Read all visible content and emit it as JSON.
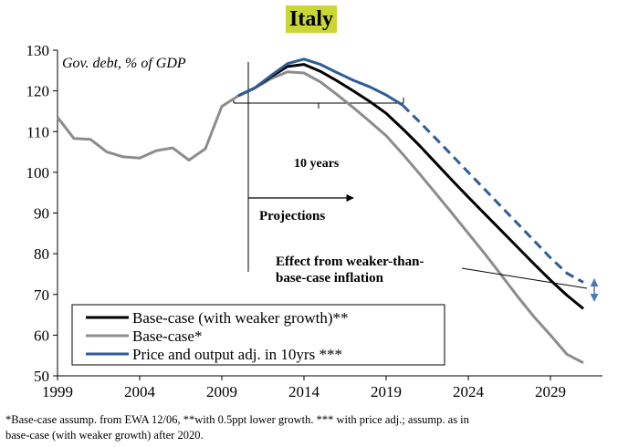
{
  "page": {
    "title": "Italy",
    "footnote_line1": "*Base-case assump. from EWA 12/06, **with 0.5ppt lower growth. *** with price adj.; assump. as in",
    "footnote_line2": "base-case (with weaker growth) after 2020."
  },
  "colors": {
    "black": "#000000",
    "gray": "#8c8c8c",
    "blue": "#2e5c96",
    "title_bg": "#c9d634"
  },
  "chart_data": {
    "type": "line",
    "title": "Italy",
    "ylabel": "Gov. debt, % of GDP",
    "xlim": [
      1999,
      2032
    ],
    "ylim": [
      50,
      130
    ],
    "xticks": [
      1999,
      2004,
      2009,
      2014,
      2019,
      2024,
      2029
    ],
    "yticks": [
      50,
      60,
      70,
      80,
      90,
      100,
      110,
      120,
      130
    ],
    "series": [
      {
        "name": "Base-case*",
        "color": "gray",
        "points": [
          [
            1999,
            113.5
          ],
          [
            2000,
            108.3
          ],
          [
            2001,
            108.1
          ],
          [
            2002,
            105
          ],
          [
            2003,
            103.8
          ],
          [
            2004,
            103.5
          ],
          [
            2005,
            105.3
          ],
          [
            2006,
            106
          ],
          [
            2007,
            103
          ],
          [
            2008,
            105.8
          ],
          [
            2009,
            116.2
          ],
          [
            2010,
            118.8
          ],
          [
            2011,
            120.7
          ],
          [
            2012,
            123
          ],
          [
            2013,
            124.7
          ],
          [
            2014,
            124.4
          ],
          [
            2015,
            122.2
          ],
          [
            2016,
            119.1
          ],
          [
            2017,
            115.9
          ],
          [
            2018,
            112.5
          ],
          [
            2019,
            109
          ],
          [
            2020,
            104.5
          ],
          [
            2021,
            99.8
          ],
          [
            2022,
            94.9
          ],
          [
            2023,
            90
          ],
          [
            2024,
            85
          ],
          [
            2025,
            80
          ],
          [
            2026,
            74.8
          ],
          [
            2027,
            69.5
          ],
          [
            2028,
            64.5
          ],
          [
            2029,
            60
          ],
          [
            2030,
            55.3
          ],
          [
            2031,
            53.2
          ]
        ]
      },
      {
        "name": "Base-case (with weaker growth)**",
        "color": "black",
        "points": [
          [
            2010,
            118.8
          ],
          [
            2011,
            120.7
          ],
          [
            2012,
            123.5
          ],
          [
            2013,
            126
          ],
          [
            2014,
            126.5
          ],
          [
            2015,
            124.8
          ],
          [
            2016,
            122.5
          ],
          [
            2017,
            120
          ],
          [
            2018,
            117.4
          ],
          [
            2019,
            114.5
          ],
          [
            2020,
            110.7
          ],
          [
            2021,
            106.7
          ],
          [
            2022,
            102.4
          ],
          [
            2023,
            98.1
          ],
          [
            2024,
            93.9
          ],
          [
            2025,
            89.8
          ],
          [
            2026,
            85.7
          ],
          [
            2027,
            81.6
          ],
          [
            2028,
            77.5
          ],
          [
            2029,
            73.5
          ],
          [
            2030,
            69.8
          ],
          [
            2031,
            66.5
          ]
        ]
      },
      {
        "name": "Price and output adj. in 10yrs ***",
        "color": "blue",
        "points": [
          [
            2010,
            118.8
          ],
          [
            2011,
            120.7
          ],
          [
            2012,
            123.8
          ],
          [
            2013,
            126.7
          ],
          [
            2014,
            127.8
          ],
          [
            2015,
            126.5
          ],
          [
            2016,
            124.5
          ],
          [
            2017,
            122.6
          ],
          [
            2018,
            121
          ],
          [
            2019,
            119
          ],
          [
            2020,
            116.5
          ]
        ],
        "projection_dashed": [
          [
            2020,
            116.5
          ],
          [
            2021,
            112.5
          ],
          [
            2022,
            108.4
          ],
          [
            2023,
            104.2
          ],
          [
            2024,
            100
          ],
          [
            2025,
            95.8
          ],
          [
            2026,
            91.6
          ],
          [
            2027,
            87.4
          ],
          [
            2028,
            83.2
          ],
          [
            2029,
            79
          ],
          [
            2030,
            75.2
          ],
          [
            2031,
            73
          ]
        ]
      }
    ],
    "annotations": {
      "ten_years": "10 years",
      "projections": "Projections",
      "effect_line1": "Effect from weaker-than-",
      "effect_line2": "base-case inflation"
    },
    "legend_position": "bottom-left"
  }
}
